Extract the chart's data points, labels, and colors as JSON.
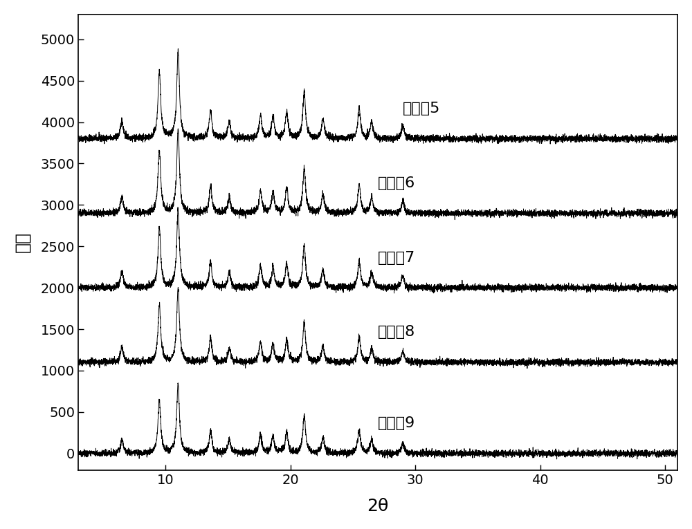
{
  "title": "",
  "xlabel": "2θ",
  "ylabel": "强度",
  "xlim": [
    3,
    51
  ],
  "ylim": [
    -200,
    5300
  ],
  "yticks": [
    0,
    500,
    1000,
    1500,
    2000,
    2500,
    3000,
    3500,
    4000,
    4500,
    5000
  ],
  "xticks": [
    10,
    20,
    30,
    40,
    50
  ],
  "labels": [
    "实施例5",
    "实施例6",
    "实施例7",
    "实施例8",
    "实施例9"
  ],
  "offsets": [
    3800,
    2900,
    2000,
    1100,
    0
  ],
  "peak_positions": [
    6.5,
    9.5,
    11.0,
    13.6,
    15.1,
    17.6,
    18.6,
    19.7,
    21.1,
    22.6,
    25.5,
    26.5,
    29.0
  ],
  "peak_heights_base": [
    220,
    800,
    1050,
    340,
    200,
    280,
    260,
    320,
    570,
    240,
    360,
    200,
    160
  ],
  "noise_level": 20,
  "background_color": "#ffffff",
  "line_color": "#000000",
  "line_width": 0.7,
  "font_size_label": 18,
  "font_size_tick": 14,
  "font_size_annotation": 16,
  "label_x_positions": [
    29,
    27,
    27,
    27,
    27
  ],
  "label_y_offsets": [
    280,
    280,
    280,
    280,
    280
  ]
}
